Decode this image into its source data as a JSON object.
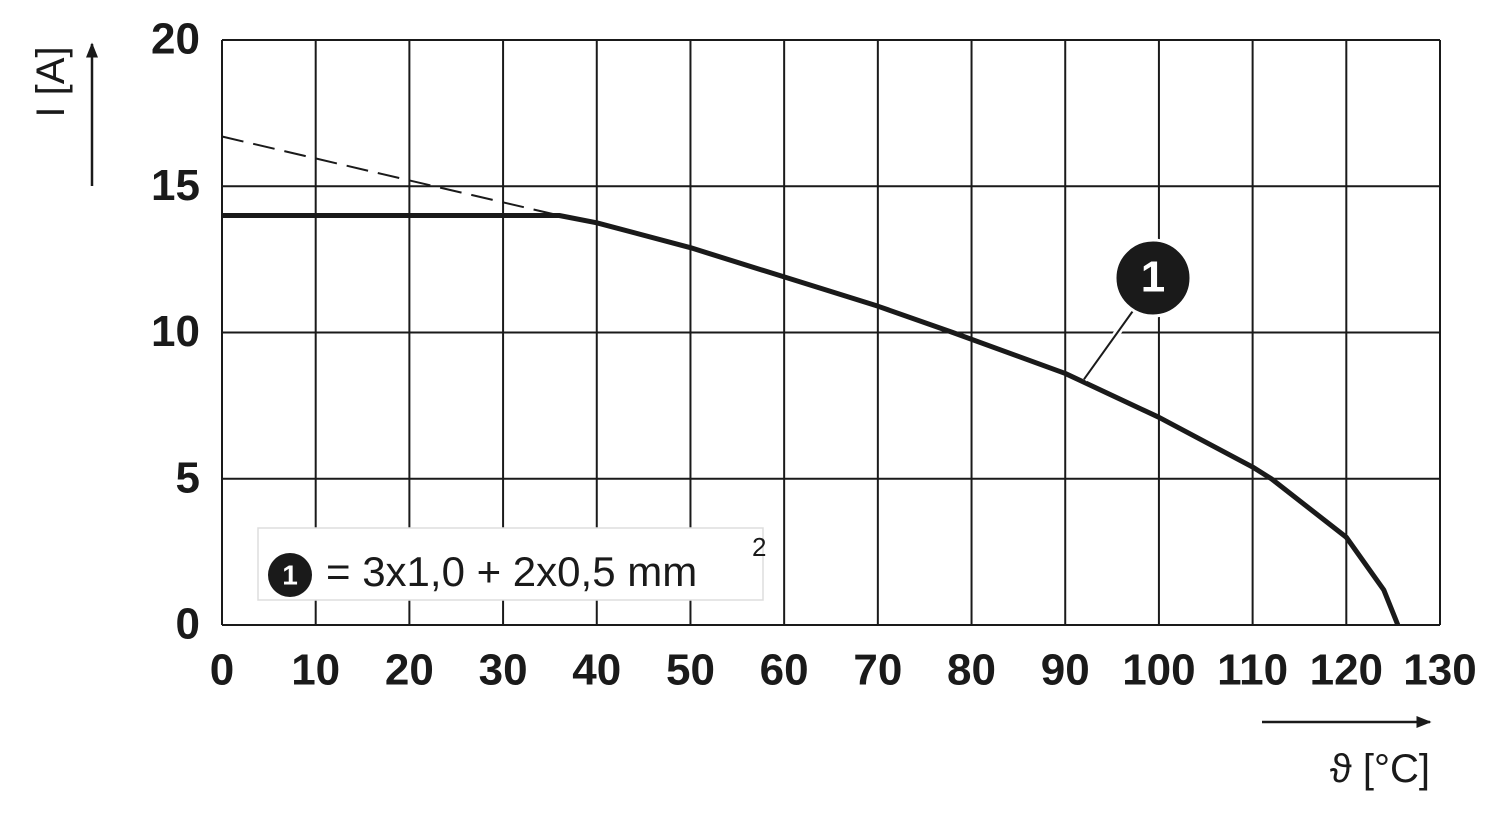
{
  "chart_data": {
    "type": "line",
    "y_label": "I [A]",
    "x_label": "ϑ [°C]",
    "xlim": [
      0,
      130
    ],
    "xticks": [
      0,
      10,
      20,
      30,
      40,
      50,
      60,
      70,
      80,
      90,
      100,
      110,
      120,
      130
    ],
    "ylim": [
      0,
      20
    ],
    "yticks": [
      0,
      5,
      10,
      15,
      20
    ],
    "grid": true,
    "series": [
      {
        "name": "1",
        "color": "#1a1a1a",
        "dash": false,
        "x": [
          0,
          36,
          40,
          50,
          60,
          70,
          78,
          90,
          100,
          110,
          112,
          120,
          124,
          125.5
        ],
        "values": [
          14,
          14,
          13.75,
          12.9,
          11.9,
          10.9,
          10,
          8.6,
          7.1,
          5.4,
          5,
          3,
          1.2,
          0
        ]
      },
      {
        "color": "#1a1a1a",
        "dash": true,
        "x": [
          0,
          36
        ],
        "values": [
          16.7,
          14
        ]
      }
    ],
    "callout": {
      "label": "1",
      "x": 92,
      "y": 8.4
    },
    "legend": {
      "marker": "1",
      "text": "= 3x1,0 + 2x0,5 mm",
      "superscript": "2"
    }
  }
}
